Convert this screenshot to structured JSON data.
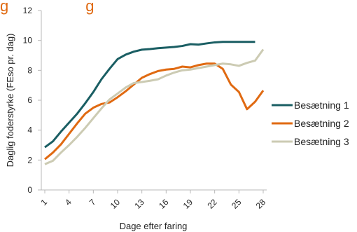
{
  "chart_data": {
    "type": "line",
    "title": "g                  g",
    "xlabel": "Dage efter faring",
    "ylabel": "Daglig foderstyrke (FEso pr. dag)",
    "ylim": [
      0,
      12
    ],
    "xlim": [
      1,
      28
    ],
    "yticks": [
      "0",
      "2",
      "4",
      "6",
      "8",
      "10",
      "12"
    ],
    "xticks": [
      "1",
      "4",
      "7",
      "10",
      "13",
      "16",
      "19",
      "22",
      "25",
      "28"
    ],
    "x": [
      1,
      2,
      3,
      4,
      5,
      6,
      7,
      8,
      9,
      10,
      11,
      12,
      13,
      14,
      15,
      16,
      17,
      18,
      19,
      20,
      21,
      22,
      23,
      24,
      25,
      26,
      27,
      28
    ],
    "series": [
      {
        "name": "Besætning 1",
        "color": "#1a5e63",
        "values": [
          2.85,
          3.25,
          3.9,
          4.5,
          5.1,
          5.8,
          6.55,
          7.4,
          8.1,
          8.75,
          9.05,
          9.25,
          9.38,
          9.42,
          9.48,
          9.52,
          9.56,
          9.63,
          9.75,
          9.72,
          9.8,
          9.87,
          9.9,
          9.9,
          9.9,
          9.9,
          9.9,
          null
        ]
      },
      {
        "name": "Besætning 2",
        "color": "#e06a12",
        "values": [
          2.05,
          2.5,
          3.05,
          3.75,
          4.45,
          5.1,
          5.5,
          5.75,
          5.85,
          6.2,
          6.6,
          7.05,
          7.5,
          7.75,
          7.95,
          8.05,
          8.1,
          8.25,
          8.2,
          8.35,
          8.45,
          8.45,
          8.1,
          7.05,
          6.55,
          5.4,
          5.9,
          6.65
        ]
      },
      {
        "name": "Besætning 3",
        "color": "#cccbb3",
        "values": [
          1.72,
          1.95,
          2.5,
          3.0,
          3.55,
          4.15,
          4.8,
          5.45,
          6.05,
          6.45,
          6.85,
          7.15,
          7.22,
          7.3,
          7.4,
          7.65,
          7.85,
          8.0,
          8.05,
          8.15,
          8.25,
          8.35,
          8.45,
          8.4,
          8.3,
          8.5,
          8.65,
          9.4
        ]
      }
    ],
    "legend_position": "right",
    "grid": false,
    "axis_color": "#b8b8b8"
  }
}
